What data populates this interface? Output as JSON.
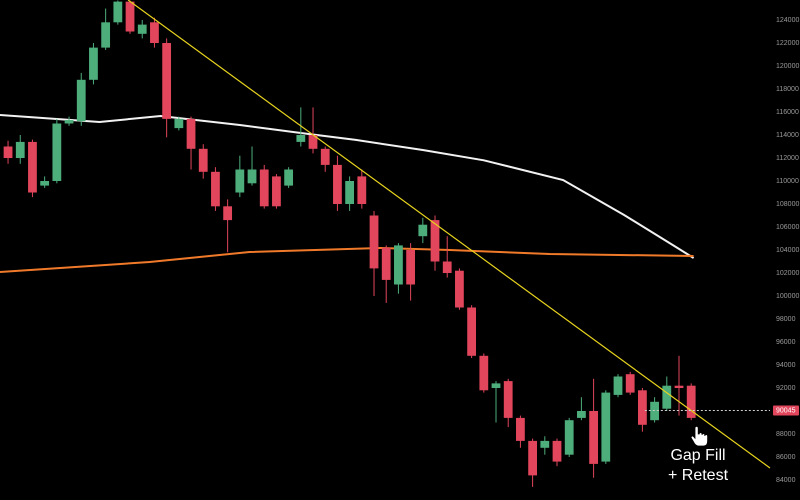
{
  "chart_data": {
    "type": "candlestick",
    "up_color": "#4dae7c",
    "down_color": "#e2465c",
    "xlim": [
      -0.66,
      62.46
    ],
    "ylim": [
      82260,
      125740
    ],
    "yticks": [
      84000,
      86000,
      88000,
      90000,
      92000,
      94000,
      96000,
      98000,
      100000,
      102000,
      104000,
      106000,
      108000,
      110000,
      112000,
      114000,
      116000,
      118000,
      120000,
      122000,
      124000
    ],
    "grid": false,
    "open": [
      113000,
      112000,
      113400,
      109600,
      110000,
      115000,
      115200,
      118800,
      121600,
      123800,
      125600,
      122800,
      123800,
      122000,
      114600,
      115400,
      112800,
      110800,
      107800,
      109000,
      109800,
      111000,
      110400,
      109600,
      113400,
      114000,
      112800,
      111400,
      108000,
      110400,
      107000,
      104200,
      101000,
      104000,
      105200,
      106600,
      103000,
      102200,
      99000,
      94800,
      92000,
      92600,
      89400,
      87400,
      86800,
      87400,
      86200,
      89400,
      90000,
      85600,
      91400,
      93200,
      91800,
      89200,
      90200,
      92200,
      92200
    ],
    "high": [
      113500,
      114000,
      113600,
      110400,
      115400,
      115600,
      119400,
      122000,
      125000,
      125700,
      125700,
      124000,
      124200,
      122400,
      115600,
      115600,
      113200,
      111200,
      108400,
      112200,
      113000,
      111400,
      110600,
      111200,
      116400,
      116400,
      113000,
      112200,
      110400,
      111000,
      107400,
      104400,
      104600,
      104600,
      106800,
      107000,
      105200,
      102400,
      99200,
      95000,
      92600,
      92800,
      89600,
      87600,
      87800,
      87600,
      89400,
      91200,
      92800,
      91800,
      93200,
      93400,
      92000,
      91200,
      93000,
      94800,
      92400
    ],
    "low": [
      111500,
      111500,
      108600,
      109400,
      109800,
      114800,
      114800,
      118400,
      121400,
      123600,
      122800,
      122400,
      121600,
      113800,
      114400,
      111000,
      110200,
      107400,
      103800,
      108600,
      109600,
      107600,
      107600,
      109400,
      113000,
      112400,
      110800,
      107400,
      107400,
      107600,
      100000,
      99400,
      100200,
      99600,
      104600,
      102200,
      101600,
      98800,
      94600,
      91600,
      89000,
      88600,
      86800,
      83400,
      86200,
      85200,
      86000,
      89200,
      84200,
      85400,
      91200,
      91400,
      88200,
      89000,
      90000,
      89600,
      89200
    ],
    "close": [
      112000,
      113400,
      109000,
      110000,
      115000,
      115300,
      118800,
      121600,
      123800,
      125600,
      123000,
      123600,
      122000,
      115400,
      115400,
      112800,
      110800,
      107800,
      106600,
      111000,
      111000,
      107800,
      107800,
      111000,
      114000,
      112800,
      111400,
      108000,
      110000,
      108000,
      102400,
      101400,
      104400,
      101000,
      106200,
      103000,
      102000,
      99000,
      94800,
      91800,
      92400,
      89400,
      87400,
      84400,
      87400,
      85600,
      89200,
      90000,
      85400,
      91600,
      93000,
      91600,
      88800,
      90800,
      92200,
      92000,
      89400
    ],
    "series": [
      {
        "color": "#f2f2f2",
        "x": [
          -0.66,
          7.5,
          12.5,
          19,
          24,
          28.5,
          34,
          39,
          45.5,
          50.5,
          54.5,
          56.2
        ],
        "values": [
          115740,
          115130,
          115650,
          114870,
          114170,
          113570,
          112700,
          111800,
          110090,
          107040,
          104430,
          103300
        ]
      },
      {
        "color": "#f07a2a",
        "x": [
          -0.66,
          11.6,
          19.8,
          30.5,
          36.2,
          44.4,
          56.2
        ],
        "values": [
          102090,
          102960,
          103830,
          104170,
          104000,
          103650,
          103480
        ]
      },
      {
        "color": "#e6d21e",
        "x": [
          9.84,
          62.46
        ],
        "values": [
          125740,
          85040
        ]
      }
    ],
    "price_label": 90045,
    "price_line_start": 52.2,
    "annotation": [
      "Gap Fill",
      "+ Retest"
    ]
  }
}
